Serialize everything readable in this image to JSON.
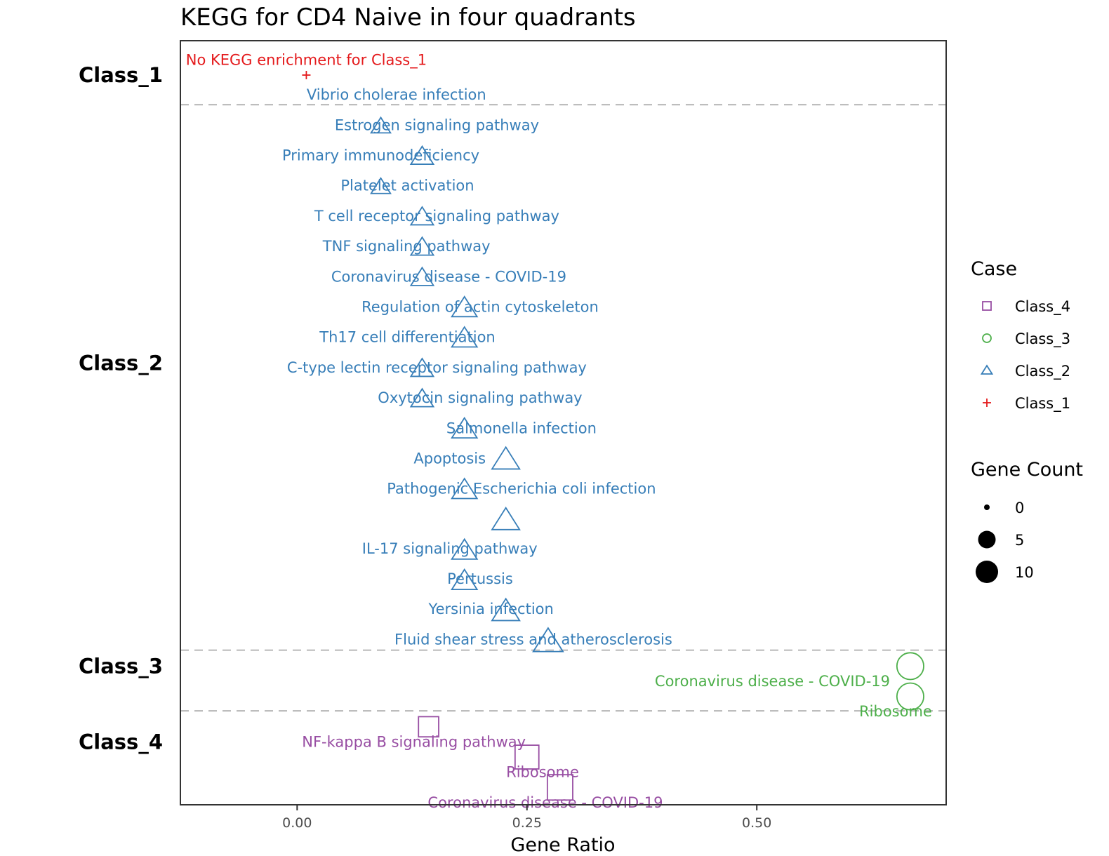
{
  "chart_data": {
    "type": "scatter",
    "title": "KEGG for CD4 Naive in four quadrants",
    "xlabel": "Gene Ratio",
    "ylabel": "",
    "xlim": [
      -0.127,
      0.706
    ],
    "x_ticks": [
      {
        "value": 0.0,
        "label": "0.00"
      },
      {
        "value": 0.25,
        "label": "0.25"
      },
      {
        "value": 0.5,
        "label": "0.50"
      }
    ],
    "colors": {
      "Class_1": "#e41a1c",
      "Class_2": "#377eb8",
      "Class_3": "#4daf4a",
      "Class_4": "#984ea3"
    },
    "shapes": {
      "Class_1": "plus",
      "Class_2": "triangle",
      "Class_3": "circle",
      "Class_4": "square"
    },
    "rows_total": 25,
    "class_labels": [
      {
        "label": "Class_1",
        "row": 0
      },
      {
        "label": "Class_2",
        "row": 9.5
      },
      {
        "label": "Class_3",
        "row": 19.5
      },
      {
        "label": "Class_4",
        "row": 22
      }
    ],
    "separators": [
      1,
      19,
      21
    ],
    "points": [
      {
        "class": "Class_1",
        "label": "No KEGG enrichment for Class_1",
        "x": 0.01,
        "count": 0,
        "row": 0,
        "label_dx": 0.0,
        "label_dy": -0.5
      },
      {
        "class": "Class_2",
        "label": "Vibrio cholerae infection",
        "x": 0.091,
        "count": 2,
        "row": 1,
        "label_dx": 0.017,
        "label_dy": -0.35
      },
      {
        "class": "Class_2",
        "label": "Estrogen signaling pathway",
        "x": 0.136,
        "count": 3,
        "row": 2,
        "label_dx": 0.016,
        "label_dy": -0.35
      },
      {
        "class": "Class_2",
        "label": "Primary immunodeficiency",
        "x": 0.091,
        "count": 2,
        "row": 3,
        "label_dx": 0.0,
        "label_dy": -0.35
      },
      {
        "class": "Class_2",
        "label": "Platelet activation",
        "x": 0.136,
        "count": 3,
        "row": 4,
        "label_dx": -0.016,
        "label_dy": -0.35
      },
      {
        "class": "Class_2",
        "label": "T cell receptor signaling pathway",
        "x": 0.136,
        "count": 3,
        "row": 5,
        "label_dx": 0.016,
        "label_dy": -0.35
      },
      {
        "class": "Class_2",
        "label": "TNF signaling pathway",
        "x": 0.136,
        "count": 3,
        "row": 6,
        "label_dx": -0.017,
        "label_dy": -0.35
      },
      {
        "class": "Class_2",
        "label": "Coronavirus disease - COVID-19",
        "x": 0.182,
        "count": 4,
        "row": 7,
        "label_dx": -0.017,
        "label_dy": -0.35
      },
      {
        "class": "Class_2",
        "label": "Regulation of actin cytoskeleton",
        "x": 0.182,
        "count": 4,
        "row": 8,
        "label_dx": 0.017,
        "label_dy": -0.35
      },
      {
        "class": "Class_2",
        "label": "Th17 cell differentiation",
        "x": 0.136,
        "count": 3,
        "row": 9,
        "label_dx": -0.016,
        "label_dy": -0.35
      },
      {
        "class": "Class_2",
        "label": "C-type lectin receptor signaling pathway",
        "x": 0.136,
        "count": 3,
        "row": 10,
        "label_dx": 0.016,
        "label_dy": -0.35
      },
      {
        "class": "Class_2",
        "label": "Oxytocin signaling pathway",
        "x": 0.182,
        "count": 4,
        "row": 11,
        "label_dx": 0.017,
        "label_dy": -0.35
      },
      {
        "class": "Class_2",
        "label": "Salmonella infection",
        "x": 0.227,
        "count": 5,
        "row": 12,
        "label_dx": 0.017,
        "label_dy": -0.35
      },
      {
        "class": "Class_2",
        "label": "Apoptosis",
        "x": 0.182,
        "count": 4,
        "row": 13,
        "label_dx": -0.016,
        "label_dy": -0.35
      },
      {
        "class": "Class_2",
        "label": "Pathogenic Escherichia coli infection",
        "x": 0.227,
        "count": 5,
        "row": 14,
        "label_dx": 0.017,
        "label_dy": -0.35
      },
      {
        "class": "Class_2",
        "label": "IL-17 signaling pathway",
        "x": 0.182,
        "count": 4,
        "row": 15,
        "label_dx": -0.016,
        "label_dy": 0.62
      },
      {
        "class": "Class_2",
        "label": "Pertussis",
        "x": 0.182,
        "count": 4,
        "row": 16,
        "label_dx": 0.017,
        "label_dy": 0.62
      },
      {
        "class": "Class_2",
        "label": "Yersinia infection",
        "x": 0.227,
        "count": 5,
        "row": 17,
        "label_dx": -0.016,
        "label_dy": 0.62
      },
      {
        "class": "Class_2",
        "label": "Fluid shear stress and atherosclerosis",
        "x": 0.273,
        "count": 6,
        "row": 18,
        "label_dx": -0.016,
        "label_dy": 0.62
      },
      {
        "class": "Class_3",
        "label": "Coronavirus disease - COVID-19",
        "x": 0.667,
        "count": 8,
        "row": 19.5,
        "label_dx": -0.15,
        "label_dy": 0.5
      },
      {
        "class": "Class_3",
        "label": "Ribosome",
        "x": 0.667,
        "count": 8,
        "row": 20.5,
        "label_dx": -0.016,
        "label_dy": 0.5
      },
      {
        "class": "Class_4",
        "label": "NF-kappa B signaling pathway",
        "x": 0.143,
        "count": 4,
        "row": 21.5,
        "label_dx": -0.016,
        "label_dy": 0.5
      },
      {
        "class": "Class_4",
        "label": "Ribosome",
        "x": 0.25,
        "count": 6,
        "row": 22.5,
        "label_dx": 0.017,
        "label_dy": 0.5
      },
      {
        "class": "Class_4",
        "label": "Coronavirus disease - COVID-19",
        "x": 0.286,
        "count": 7,
        "row": 23.5,
        "label_dx": -0.016,
        "label_dy": 0.5
      }
    ],
    "legend": {
      "case_title": "Case",
      "case_items": [
        "Class_4",
        "Class_3",
        "Class_2",
        "Class_1"
      ],
      "size_title": "Gene Count",
      "size_items": [
        {
          "label": "0",
          "count": 0
        },
        {
          "label": "5",
          "count": 5
        },
        {
          "label": "10",
          "count": 10
        }
      ]
    }
  }
}
